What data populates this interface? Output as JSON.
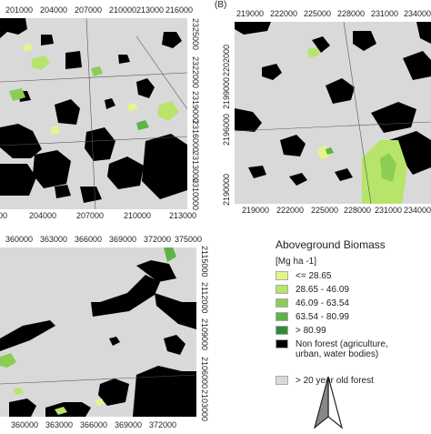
{
  "panels": {
    "a": {
      "x_ticks": [
        "201000",
        "204000",
        "207000",
        "210000",
        "213000",
        "216000"
      ],
      "y_ticks": [
        "2325000",
        "2322000",
        "2319000",
        "2316000",
        "2313000",
        "2310000"
      ]
    },
    "b": {
      "label": "(B)",
      "x_ticks": [
        "219000",
        "222000",
        "225000",
        "228000",
        "231000",
        "234000"
      ],
      "y_ticks": [
        "2202000",
        "2199000",
        "2196000",
        "2193000",
        "2190000"
      ]
    },
    "c": {
      "x_ticks": [
        "360000",
        "363000",
        "366000",
        "369000",
        "372000",
        "375000"
      ],
      "y_ticks": [
        "2115000",
        "2112000",
        "2109000",
        "2106000",
        "2103000"
      ]
    }
  },
  "legend": {
    "title": "Aboveground Biomass",
    "unit": "[Mg ha -1]",
    "items": [
      {
        "label": "<= 28.65",
        "color": "#e3f58a"
      },
      {
        "label": "28.65 - 46.09",
        "color": "#b7e46a"
      },
      {
        "label": "46.09 - 63.54",
        "color": "#8bcd55"
      },
      {
        "label": "63.54 - 80.99",
        "color": "#5cb346"
      },
      {
        "label": "> 80.99",
        "color": "#2e8b3a"
      },
      {
        "label": "Non forest (agriculture, urban, water bodies)",
        "color": "#000000"
      },
      {
        "label": "> 20 year old forest",
        "color": "#d9d9d9"
      }
    ]
  },
  "north_arrow": "north-arrow-icon"
}
